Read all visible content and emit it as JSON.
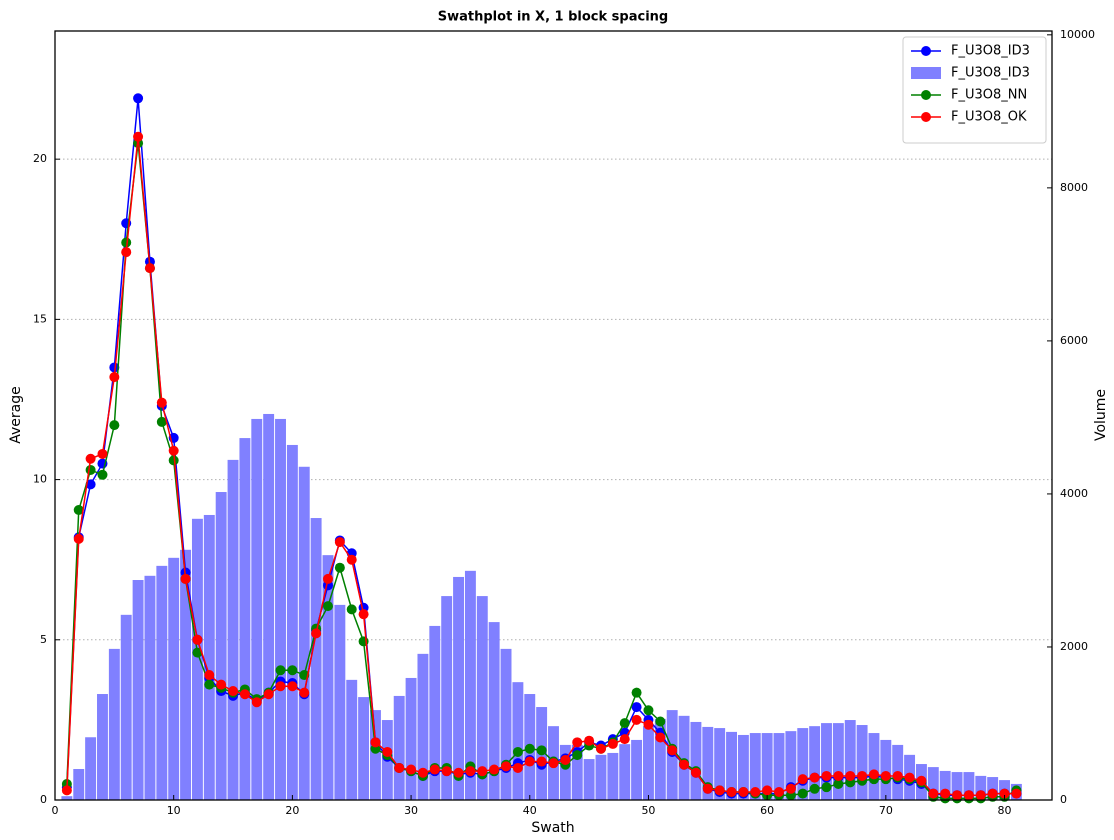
{
  "chart_data": {
    "type": "combo",
    "title": "Swathplot in X, 1 block spacing",
    "x_label": "Swath",
    "y_label": "Average",
    "y2_label": "Volume",
    "x": [
      1,
      2,
      3,
      4,
      5,
      6,
      7,
      8,
      9,
      10,
      11,
      12,
      13,
      14,
      15,
      16,
      17,
      18,
      19,
      20,
      21,
      22,
      23,
      24,
      25,
      26,
      27,
      28,
      29,
      30,
      31,
      32,
      33,
      34,
      35,
      36,
      37,
      38,
      39,
      40,
      41,
      42,
      43,
      44,
      45,
      46,
      47,
      48,
      49,
      50,
      51,
      52,
      53,
      54,
      55,
      56,
      57,
      58,
      59,
      60,
      61,
      62,
      63,
      64,
      65,
      66,
      67,
      68,
      69,
      70,
      71,
      72,
      73,
      74,
      75,
      76,
      77,
      78,
      79,
      80,
      81
    ],
    "xlim": [
      0,
      84
    ],
    "xticks": [
      0,
      10,
      20,
      30,
      40,
      50,
      60,
      70,
      80
    ],
    "ylim": [
      0,
      24
    ],
    "yticks": [
      0,
      5,
      10,
      15,
      20
    ],
    "y2lim": [
      0,
      10050
    ],
    "y2ticks": [
      0,
      2000,
      4000,
      6000,
      8000,
      10000
    ],
    "grid": true,
    "legend": "upper right",
    "series": [
      {
        "name": "F_U3O8_ID3",
        "type": "line",
        "color": "#0000ff",
        "values": [
          0.4,
          8.2,
          9.85,
          10.5,
          13.5,
          18.0,
          21.9,
          16.8,
          12.3,
          11.3,
          7.1,
          5.0,
          3.8,
          3.4,
          3.25,
          3.35,
          3.1,
          3.35,
          3.7,
          3.65,
          3.3,
          5.3,
          6.7,
          8.1,
          7.7,
          6.0,
          1.8,
          1.35,
          1.0,
          0.9,
          0.75,
          0.9,
          0.9,
          0.8,
          0.85,
          0.8,
          0.9,
          1.0,
          1.15,
          1.25,
          1.1,
          1.2,
          1.3,
          1.5,
          1.8,
          1.7,
          1.9,
          2.1,
          2.9,
          2.5,
          2.1,
          1.5,
          1.1,
          0.85,
          0.35,
          0.25,
          0.2,
          0.2,
          0.2,
          0.2,
          0.2,
          0.4,
          0.6,
          0.7,
          0.7,
          0.7,
          0.7,
          0.7,
          0.75,
          0.7,
          0.65,
          0.6,
          0.5,
          0.2,
          0.15,
          0.15,
          0.15,
          0.15,
          0.2,
          0.2,
          0.2
        ]
      },
      {
        "name": "F_U3O8_ID3",
        "type": "bar",
        "axis": "y2",
        "color": "#8080ff",
        "values": [
          50,
          405,
          820,
          1385,
          1975,
          2420,
          2875,
          2930,
          3060,
          3165,
          3270,
          3675,
          3725,
          4025,
          4445,
          4730,
          4980,
          5045,
          4980,
          4640,
          4355,
          3685,
          3200,
          2550,
          1570,
          1345,
          1175,
          1045,
          1360,
          1595,
          1910,
          2275,
          2665,
          2915,
          2995,
          2665,
          2325,
          1975,
          1540,
          1385,
          1215,
          965,
          720,
          720,
          535,
          590,
          615,
          730,
          785,
          965,
          1060,
          1175,
          1100,
          1020,
          955,
          940,
          890,
          850,
          875,
          875,
          875,
          900,
          940,
          965,
          1005,
          1005,
          1045,
          980,
          875,
          785,
          720,
          590,
          470,
          430,
          380,
          365,
          365,
          315,
          300,
          260,
          210
        ]
      },
      {
        "name": "F_U3O8_NN",
        "type": "line",
        "color": "#008000",
        "values": [
          0.5,
          9.05,
          10.3,
          10.15,
          11.7,
          17.4,
          20.5,
          16.6,
          11.8,
          10.6,
          6.9,
          4.6,
          3.6,
          3.5,
          3.35,
          3.45,
          3.15,
          3.35,
          4.05,
          4.05,
          3.9,
          5.35,
          6.05,
          7.25,
          5.95,
          4.95,
          1.6,
          1.4,
          1.0,
          0.9,
          0.75,
          1.0,
          1.0,
          0.75,
          1.05,
          0.8,
          0.9,
          1.1,
          1.5,
          1.6,
          1.55,
          1.2,
          1.1,
          1.4,
          1.7,
          1.6,
          1.8,
          2.4,
          3.35,
          2.8,
          2.45,
          1.6,
          1.15,
          0.9,
          0.4,
          0.3,
          0.25,
          0.25,
          0.2,
          0.15,
          0.15,
          0.15,
          0.2,
          0.35,
          0.4,
          0.5,
          0.55,
          0.6,
          0.65,
          0.65,
          0.7,
          0.65,
          0.55,
          0.1,
          0.05,
          0.05,
          0.05,
          0.05,
          0.1,
          0.1,
          0.3
        ]
      },
      {
        "name": "F_U3O8_OK",
        "type": "line",
        "color": "#ff0000",
        "values": [
          0.3,
          8.15,
          10.65,
          10.8,
          13.2,
          17.1,
          20.7,
          16.6,
          12.4,
          10.9,
          6.9,
          5.0,
          3.9,
          3.6,
          3.4,
          3.3,
          3.05,
          3.3,
          3.55,
          3.55,
          3.35,
          5.2,
          6.9,
          8.05,
          7.5,
          5.8,
          1.8,
          1.5,
          1.0,
          0.95,
          0.85,
          0.95,
          0.9,
          0.85,
          0.9,
          0.9,
          0.95,
          1.05,
          1.0,
          1.2,
          1.2,
          1.15,
          1.25,
          1.8,
          1.85,
          1.6,
          1.75,
          1.9,
          2.5,
          2.35,
          1.95,
          1.55,
          1.1,
          0.85,
          0.35,
          0.3,
          0.25,
          0.25,
          0.25,
          0.3,
          0.25,
          0.35,
          0.65,
          0.7,
          0.75,
          0.75,
          0.75,
          0.75,
          0.8,
          0.75,
          0.75,
          0.7,
          0.6,
          0.2,
          0.2,
          0.15,
          0.15,
          0.15,
          0.2,
          0.2,
          0.2
        ]
      }
    ]
  }
}
